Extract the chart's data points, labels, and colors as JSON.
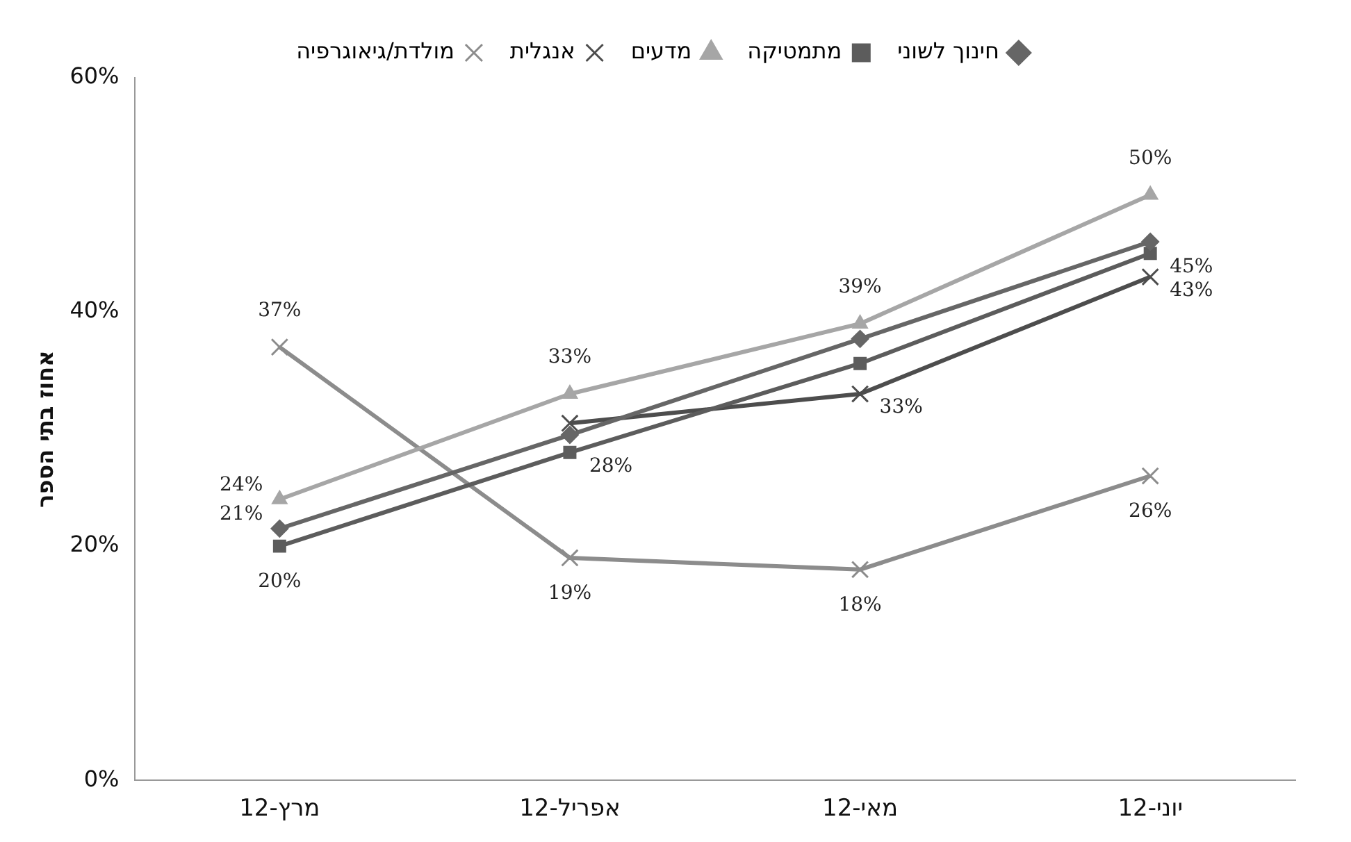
{
  "chart_data": {
    "type": "line",
    "ylabel": "אחוז בתי הספר",
    "categories": [
      "מרץ-12",
      "אפריל-12",
      "מאי-12",
      "יוני-12"
    ],
    "series": [
      {
        "name": "חינוך לשוני",
        "color": "#666666",
        "marker": "diamond",
        "values": [
          21.5,
          29.5,
          37.7,
          46
        ],
        "value_labels": [
          "21%",
          null,
          null,
          null
        ]
      },
      {
        "name": "מתמטיקה",
        "color": "#5c5c5c",
        "marker": "square",
        "values": [
          20,
          28,
          35.6,
          45
        ],
        "value_labels": [
          "20%",
          "28%",
          null,
          "45%"
        ]
      },
      {
        "name": "מדעים",
        "color": "#a6a6a6",
        "marker": "triangle",
        "values": [
          24,
          33,
          39,
          50
        ],
        "value_labels": [
          "24%",
          "33%",
          "39%",
          "50%"
        ]
      },
      {
        "name": "אנגלית",
        "color": "#4d4d4d",
        "marker": "cross",
        "values": [
          null,
          30.5,
          33,
          43
        ],
        "value_labels": [
          null,
          null,
          "33%",
          "43%"
        ]
      },
      {
        "name": "מולדת/גיאוגרפיה",
        "color": "#8c8c8c",
        "marker": "cross",
        "values": [
          37,
          19,
          18,
          26
        ],
        "value_labels": [
          "37%",
          "19%",
          "18%",
          "26%"
        ]
      }
    ],
    "ylim": [
      0,
      60
    ],
    "yticks": [
      {
        "value": 0,
        "label": "0%"
      },
      {
        "value": 20,
        "label": "20%"
      },
      {
        "value": 40,
        "label": "40%"
      },
      {
        "value": 60,
        "label": "60%"
      }
    ],
    "grid": false,
    "legend": "top"
  }
}
